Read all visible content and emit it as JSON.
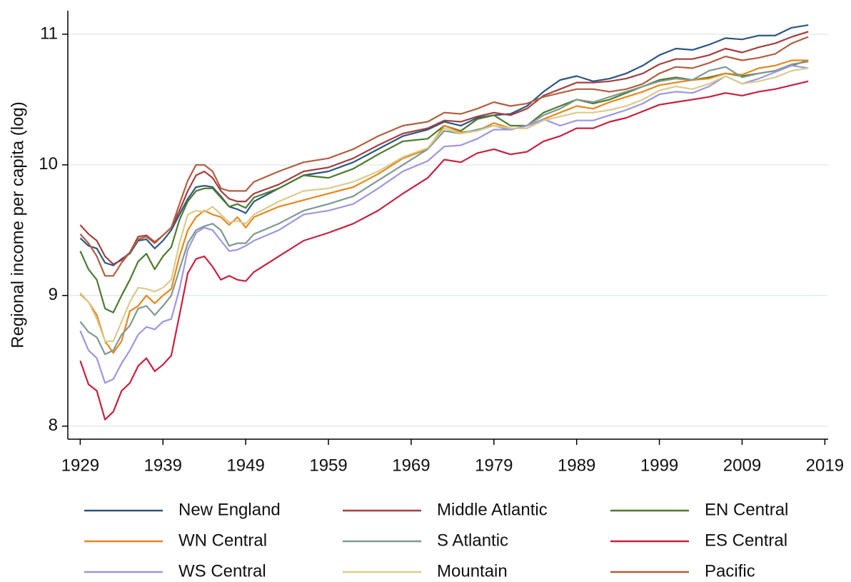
{
  "chart_data": {
    "type": "line",
    "ylabel": "Regional income per capita (log)",
    "x": [
      1929,
      1930,
      1931,
      1932,
      1933,
      1934,
      1935,
      1936,
      1937,
      1938,
      1939,
      1940,
      1941,
      1942,
      1943,
      1944,
      1945,
      1946,
      1947,
      1948,
      1949,
      1950,
      1953,
      1956,
      1959,
      1962,
      1965,
      1968,
      1971,
      1973,
      1975,
      1977,
      1979,
      1981,
      1983,
      1985,
      1987,
      1989,
      1991,
      1993,
      1995,
      1997,
      1999,
      2001,
      2003,
      2005,
      2007,
      2009,
      2011,
      2013,
      2015,
      2017
    ],
    "xlim": [
      1927.5,
      2019.4
    ],
    "xticks": [
      1929,
      1939,
      1949,
      1959,
      1969,
      1979,
      1989,
      1999,
      2009,
      2019
    ],
    "ylim": [
      7.9,
      11.18
    ],
    "yticks": [
      8,
      9,
      10,
      11
    ],
    "grid": true,
    "legend": "bottom",
    "series": [
      {
        "name": "New England",
        "color": "#2a5783",
        "values": [
          9.44,
          9.38,
          9.36,
          9.25,
          9.23,
          9.28,
          9.32,
          9.42,
          9.43,
          9.36,
          9.42,
          9.5,
          9.62,
          9.74,
          9.83,
          9.84,
          9.83,
          9.76,
          9.68,
          9.66,
          9.63,
          9.72,
          9.82,
          9.92,
          9.95,
          10.02,
          10.12,
          10.22,
          10.27,
          10.33,
          10.3,
          10.36,
          10.38,
          10.39,
          10.45,
          10.56,
          10.65,
          10.68,
          10.64,
          10.66,
          10.7,
          10.76,
          10.84,
          10.89,
          10.88,
          10.92,
          10.97,
          10.96,
          10.99,
          10.99,
          11.05,
          11.07
        ]
      },
      {
        "name": "Middle Atlantic",
        "color": "#a53f3f",
        "values": [
          9.54,
          9.47,
          9.42,
          9.3,
          9.24,
          9.27,
          9.33,
          9.45,
          9.46,
          9.41,
          9.46,
          9.52,
          9.65,
          9.8,
          9.92,
          9.95,
          9.9,
          9.8,
          9.74,
          9.72,
          9.72,
          9.78,
          9.85,
          9.95,
          9.98,
          10.05,
          10.15,
          10.24,
          10.28,
          10.34,
          10.33,
          10.37,
          10.4,
          10.38,
          10.43,
          10.53,
          10.58,
          10.63,
          10.63,
          10.64,
          10.66,
          10.7,
          10.77,
          10.81,
          10.81,
          10.84,
          10.89,
          10.86,
          10.9,
          10.93,
          10.98,
          11.02
        ]
      },
      {
        "name": "EN Central",
        "color": "#4e7a2e",
        "values": [
          9.34,
          9.2,
          9.12,
          8.9,
          8.87,
          9.0,
          9.12,
          9.26,
          9.32,
          9.2,
          9.3,
          9.37,
          9.58,
          9.72,
          9.8,
          9.82,
          9.82,
          9.75,
          9.68,
          9.7,
          9.67,
          9.75,
          9.82,
          9.92,
          9.9,
          9.97,
          10.08,
          10.18,
          10.2,
          10.3,
          10.26,
          10.35,
          10.38,
          10.3,
          10.3,
          10.4,
          10.45,
          10.5,
          10.47,
          10.5,
          10.55,
          10.6,
          10.65,
          10.67,
          10.65,
          10.67,
          10.7,
          10.68,
          10.7,
          10.72,
          10.76,
          10.8
        ]
      },
      {
        "name": "WN Central",
        "color": "#e8861c",
        "values": [
          9.01,
          8.95,
          8.85,
          8.65,
          8.56,
          8.65,
          8.88,
          8.92,
          9.0,
          8.94,
          9.0,
          9.05,
          9.3,
          9.5,
          9.6,
          9.65,
          9.62,
          9.6,
          9.54,
          9.6,
          9.52,
          9.6,
          9.68,
          9.73,
          9.78,
          9.83,
          9.93,
          10.05,
          10.12,
          10.3,
          10.25,
          10.26,
          10.32,
          10.28,
          10.28,
          10.35,
          10.4,
          10.45,
          10.43,
          10.48,
          10.52,
          10.56,
          10.61,
          10.63,
          10.65,
          10.66,
          10.7,
          10.69,
          10.74,
          10.76,
          10.8,
          10.8
        ]
      },
      {
        "name": "S Atlantic",
        "color": "#7d9a8e",
        "values": [
          8.8,
          8.72,
          8.68,
          8.55,
          8.58,
          8.7,
          8.77,
          8.9,
          8.92,
          8.85,
          8.92,
          9.0,
          9.2,
          9.4,
          9.5,
          9.53,
          9.55,
          9.5,
          9.38,
          9.4,
          9.4,
          9.47,
          9.55,
          9.65,
          9.7,
          9.76,
          9.88,
          10.0,
          10.12,
          10.26,
          10.24,
          10.27,
          10.3,
          10.27,
          10.3,
          10.38,
          10.43,
          10.5,
          10.48,
          10.52,
          10.56,
          10.6,
          10.64,
          10.66,
          10.65,
          10.72,
          10.75,
          10.67,
          10.7,
          10.72,
          10.77,
          10.79
        ]
      },
      {
        "name": "ES Central",
        "color": "#c8203e",
        "values": [
          8.5,
          8.32,
          8.27,
          8.05,
          8.11,
          8.27,
          8.33,
          8.46,
          8.52,
          8.42,
          8.47,
          8.54,
          8.85,
          9.17,
          9.28,
          9.3,
          9.22,
          9.12,
          9.15,
          9.12,
          9.11,
          9.18,
          9.3,
          9.42,
          9.48,
          9.55,
          9.65,
          9.78,
          9.9,
          10.04,
          10.02,
          10.09,
          10.12,
          10.08,
          10.1,
          10.18,
          10.22,
          10.28,
          10.28,
          10.33,
          10.36,
          10.41,
          10.46,
          10.48,
          10.5,
          10.52,
          10.55,
          10.53,
          10.56,
          10.58,
          10.61,
          10.64
        ]
      },
      {
        "name": "WS Central",
        "color": "#9d96e0",
        "values": [
          8.73,
          8.58,
          8.52,
          8.33,
          8.36,
          8.48,
          8.58,
          8.7,
          8.76,
          8.74,
          8.8,
          8.82,
          9.05,
          9.35,
          9.48,
          9.52,
          9.5,
          9.42,
          9.34,
          9.35,
          9.38,
          9.42,
          9.5,
          9.62,
          9.65,
          9.7,
          9.82,
          9.95,
          10.03,
          10.14,
          10.15,
          10.2,
          10.27,
          10.27,
          10.3,
          10.35,
          10.3,
          10.34,
          10.34,
          10.38,
          10.42,
          10.47,
          10.54,
          10.56,
          10.55,
          10.6,
          10.68,
          10.62,
          10.66,
          10.71,
          10.76,
          10.74
        ]
      },
      {
        "name": "Mountain",
        "color": "#d9cb8e",
        "values": [
          9.02,
          8.95,
          8.82,
          8.65,
          8.65,
          8.8,
          8.95,
          9.06,
          9.05,
          9.03,
          9.06,
          9.12,
          9.4,
          9.62,
          9.65,
          9.64,
          9.68,
          9.62,
          9.56,
          9.57,
          9.55,
          9.62,
          9.72,
          9.8,
          9.82,
          9.87,
          9.95,
          10.06,
          10.13,
          10.28,
          10.24,
          10.26,
          10.3,
          10.28,
          10.28,
          10.34,
          10.37,
          10.4,
          10.4,
          10.42,
          10.45,
          10.5,
          10.57,
          10.6,
          10.58,
          10.62,
          10.68,
          10.62,
          10.64,
          10.67,
          10.72,
          10.74
        ]
      },
      {
        "name": "Pacific",
        "color": "#b35e40",
        "values": [
          9.47,
          9.4,
          9.3,
          9.15,
          9.15,
          9.25,
          9.33,
          9.43,
          9.45,
          9.4,
          9.46,
          9.52,
          9.7,
          9.88,
          10.0,
          10.0,
          9.95,
          9.82,
          9.8,
          9.8,
          9.8,
          9.87,
          9.95,
          10.02,
          10.05,
          10.12,
          10.22,
          10.3,
          10.33,
          10.4,
          10.39,
          10.43,
          10.48,
          10.45,
          10.47,
          10.52,
          10.55,
          10.58,
          10.58,
          10.56,
          10.58,
          10.62,
          10.7,
          10.75,
          10.74,
          10.78,
          10.83,
          10.8,
          10.82,
          10.85,
          10.93,
          10.98
        ]
      }
    ]
  }
}
